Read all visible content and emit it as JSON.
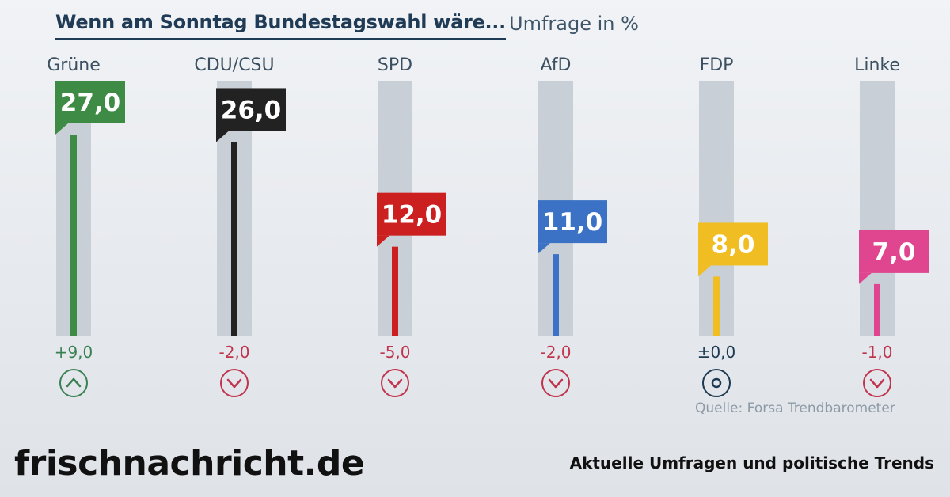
{
  "header": {
    "title": "Wenn am Sonntag Bundestagswahl wäre...",
    "subtitle": "Umfrage in %"
  },
  "source": "Quelle: Forsa Trendbarometer",
  "footer": {
    "brand": "frischnachricht.de",
    "tagline": "Aktuelle Umfragen und politische Trends"
  },
  "chart_data": {
    "type": "bar",
    "title": "Wenn am Sonntag Bundestagswahl wäre...",
    "subtitle": "Umfrage in %",
    "ylim": [
      0,
      27
    ],
    "grid": false,
    "categories": [
      "Grüne",
      "CDU/CSU",
      "SPD",
      "AfD",
      "FDP",
      "Linke"
    ],
    "values": [
      27.0,
      26.0,
      12.0,
      11.0,
      8.0,
      7.0
    ],
    "value_labels": [
      "27,0",
      "26,0",
      "12,0",
      "11,0",
      "8,0",
      "7,0"
    ],
    "changes": [
      9.0,
      -2.0,
      -5.0,
      -2.0,
      0.0,
      -1.0
    ],
    "change_labels": [
      "+9,0",
      "-2,0",
      "-5,0",
      "-2,0",
      "±0,0",
      "-1,0"
    ],
    "trend": [
      "up",
      "down",
      "down",
      "down",
      "neutral",
      "down"
    ],
    "colors": [
      "#3d8b45",
      "#222222",
      "#cc1f1f",
      "#3b72c5",
      "#f0bd22",
      "#e0468f"
    ],
    "change_colors": {
      "up": "#3a8151",
      "down": "#c0344d",
      "neutral": "#1d3a52"
    },
    "track_color": "#c9cfd6"
  }
}
